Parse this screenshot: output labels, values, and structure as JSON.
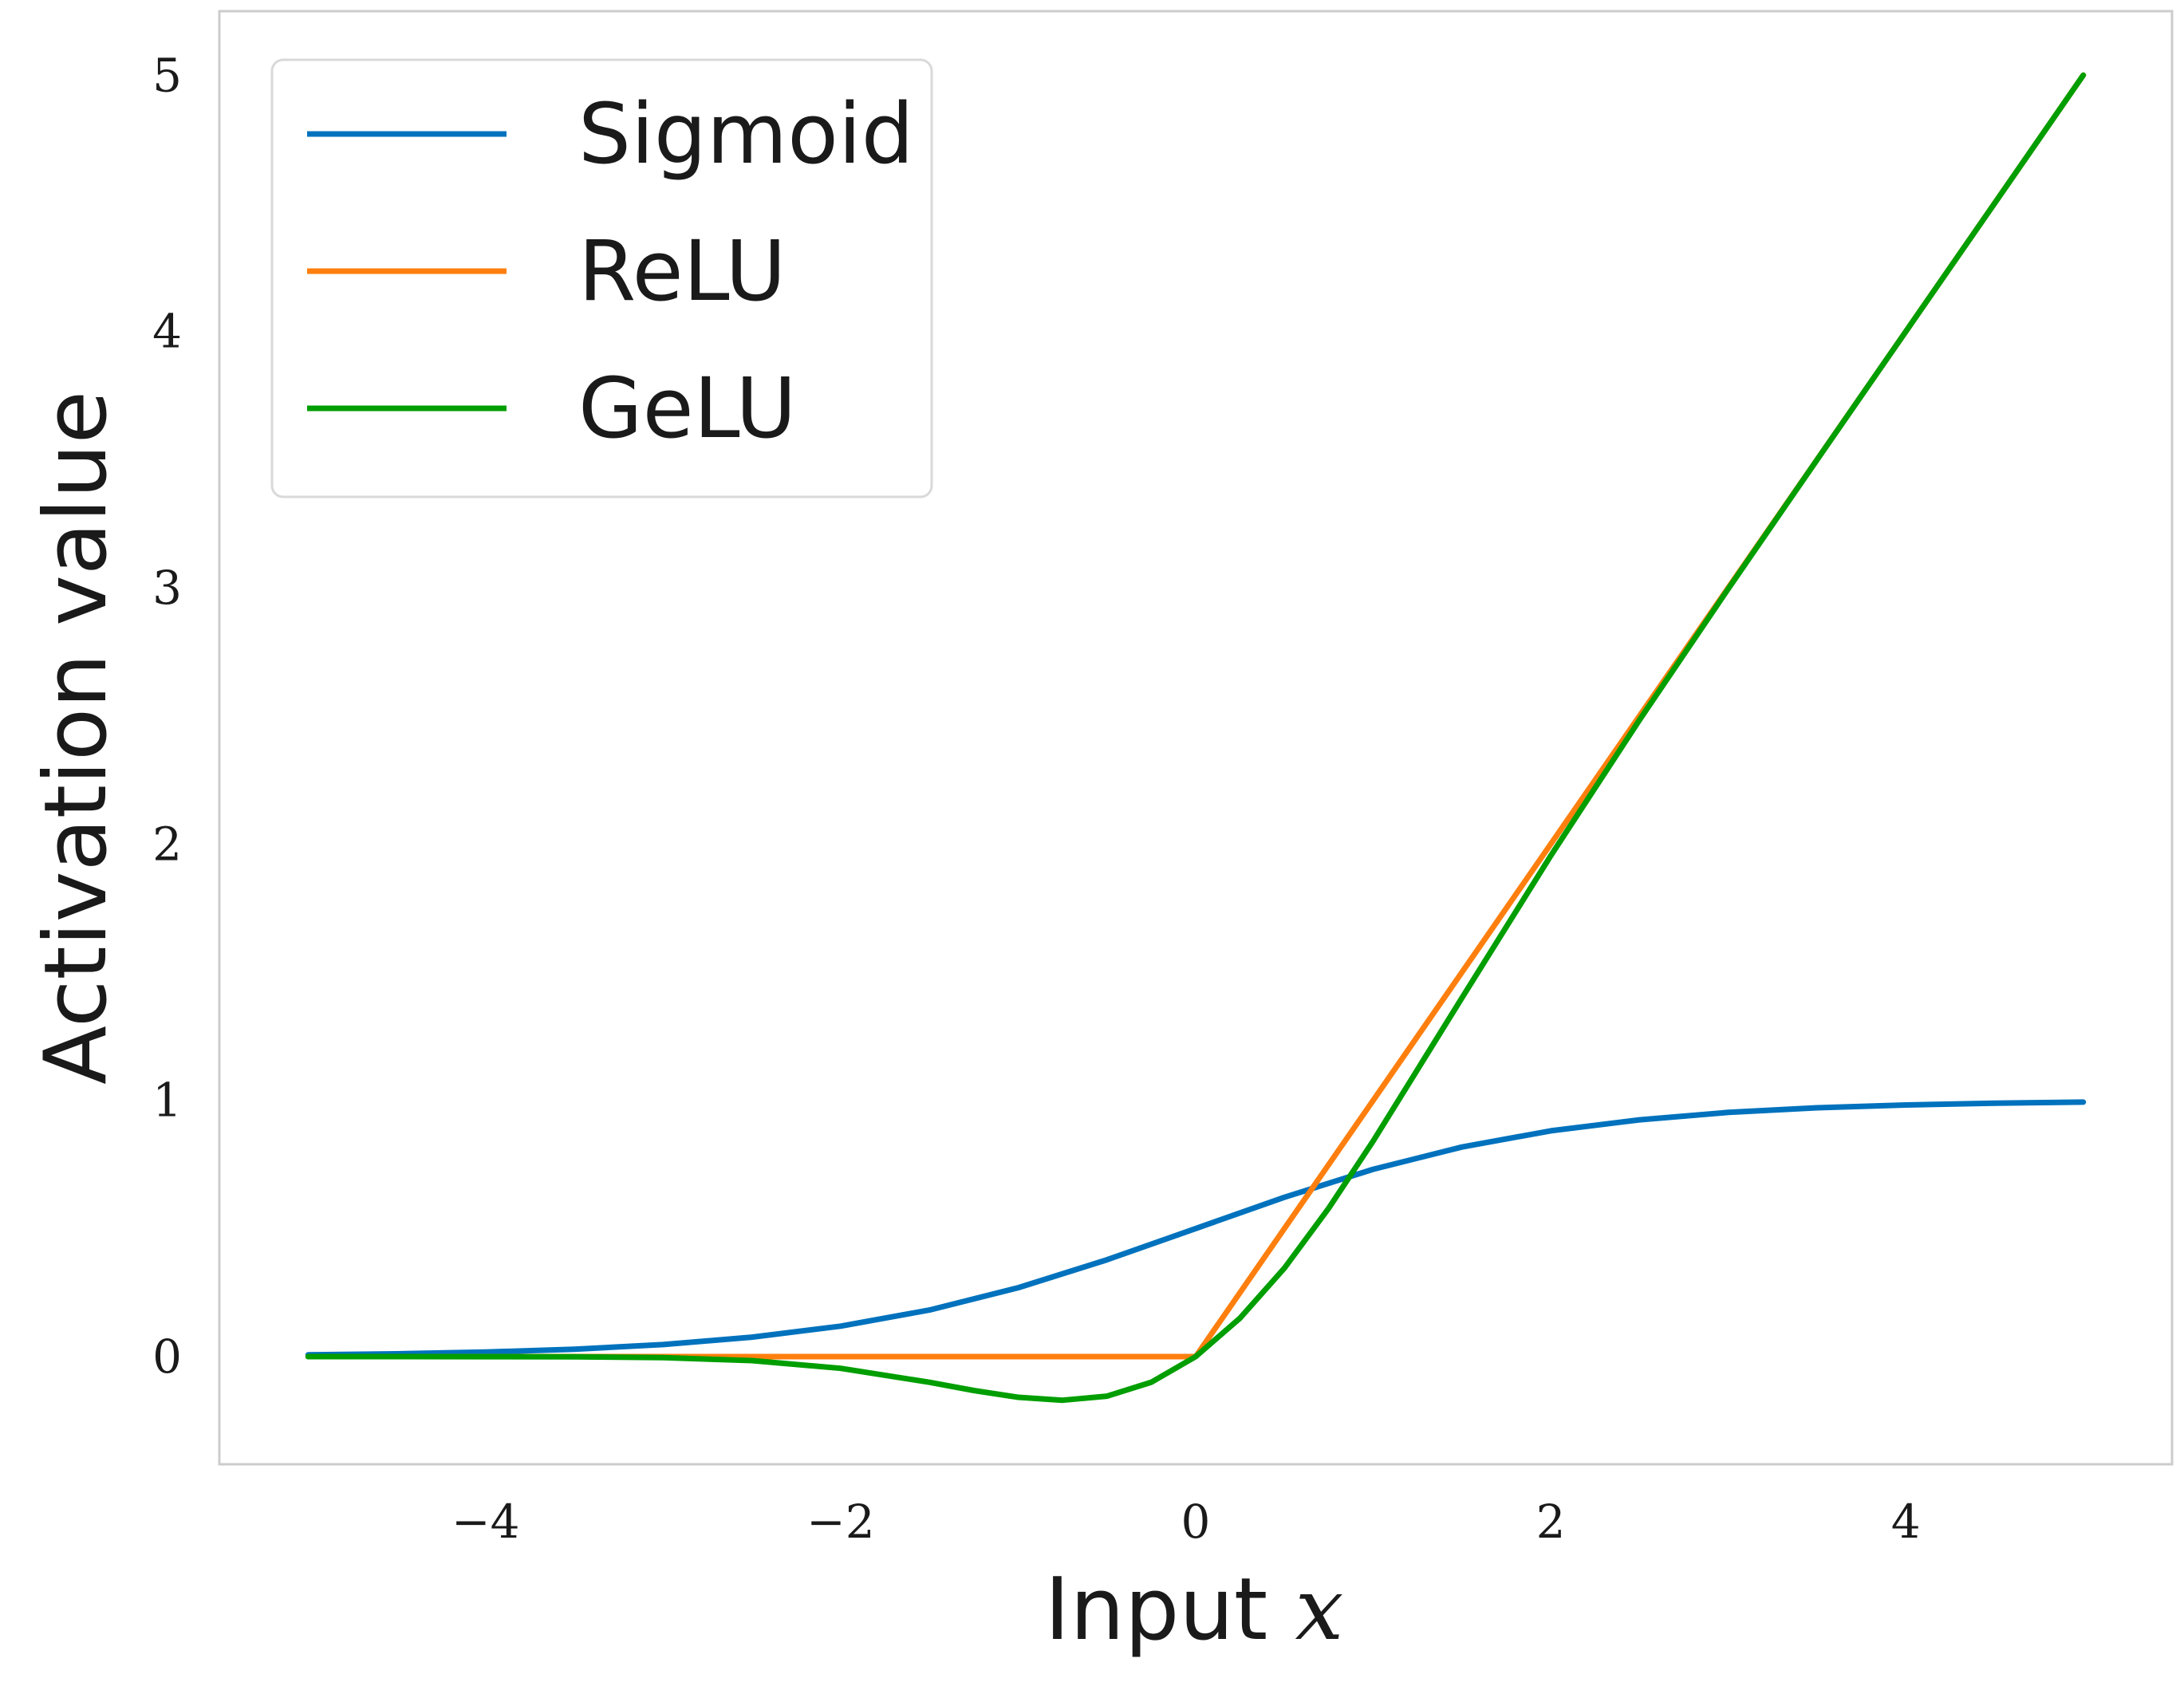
{
  "chart_data": {
    "type": "line",
    "xlabel": "Input",
    "xlabel_math": "x",
    "ylabel": "Activation value",
    "xlim": [
      -5.5,
      5.5
    ],
    "ylim": [
      -0.42,
      5.25
    ],
    "xticks": [
      -4,
      -2,
      0,
      2,
      4
    ],
    "xtick_labels": [
      "−4",
      "−2",
      "0",
      "2",
      "4"
    ],
    "yticks": [
      0,
      1,
      2,
      3,
      4,
      5
    ],
    "ytick_labels": [
      "0",
      "1",
      "2",
      "3",
      "4",
      "5"
    ],
    "grid": false,
    "legend_position": "top-left",
    "colors": {
      "Sigmoid": "#0072bd",
      "ReLU": "#ff7f0e",
      "GeLU": "#009e00",
      "frame": "#cccccc"
    },
    "series": [
      {
        "name": "Sigmoid",
        "x": [
          -5,
          -4.5,
          -4,
          -3.5,
          -3,
          -2.5,
          -2,
          -1.5,
          -1,
          -0.5,
          0,
          0.5,
          1,
          1.5,
          2,
          2.5,
          3,
          3.5,
          4,
          4.5,
          5
        ],
        "y": [
          0.007,
          0.011,
          0.018,
          0.029,
          0.047,
          0.076,
          0.119,
          0.182,
          0.269,
          0.378,
          0.5,
          0.622,
          0.731,
          0.818,
          0.881,
          0.924,
          0.953,
          0.971,
          0.982,
          0.989,
          0.993
        ]
      },
      {
        "name": "ReLU",
        "x": [
          -5,
          -4,
          -3,
          -2,
          -1,
          0,
          1,
          2,
          3,
          4,
          5
        ],
        "y": [
          0,
          0,
          0,
          0,
          0,
          0,
          1,
          2,
          3,
          4,
          5
        ]
      },
      {
        "name": "GeLU",
        "x": [
          -5,
          -4.5,
          -4,
          -3.5,
          -3,
          -2.5,
          -2,
          -1.5,
          -1.25,
          -1,
          -0.75,
          -0.5,
          -0.25,
          0,
          0.25,
          0.5,
          0.75,
          1,
          1.5,
          2,
          2.5,
          3,
          3.5,
          4,
          4.5,
          5
        ],
        "y": [
          0.0,
          0.0,
          -0.0001,
          -0.0008,
          -0.004,
          -0.0155,
          -0.0455,
          -0.1002,
          -0.132,
          -0.1587,
          -0.17,
          -0.1543,
          -0.0997,
          0.0,
          0.1503,
          0.3457,
          0.58,
          0.8413,
          1.3998,
          1.9545,
          2.4845,
          2.996,
          3.4992,
          3.9999,
          4.5,
          5.0
        ]
      }
    ]
  }
}
